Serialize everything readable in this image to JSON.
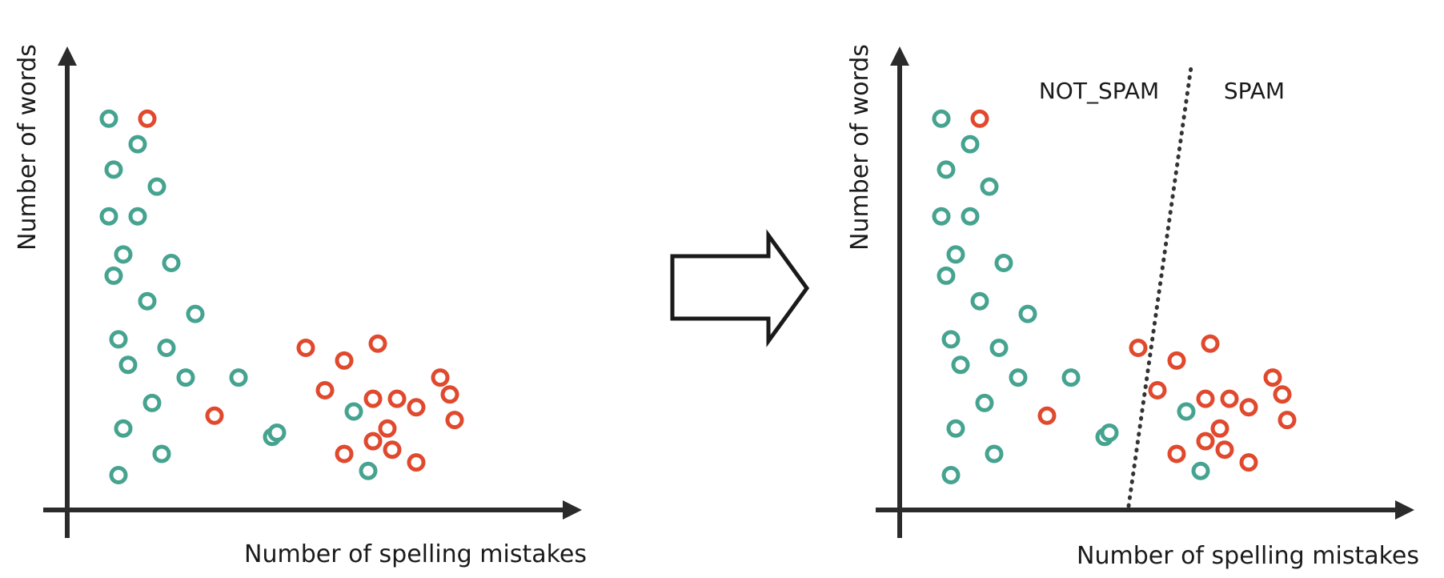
{
  "colors": {
    "not_spam": "#45a390",
    "spam": "#e0492d",
    "axis": "#2b2b2b",
    "text": "#1a1a1a",
    "arrow_stroke": "#1a1a1a",
    "boundary": "#333333"
  },
  "left_plot": {
    "x_axis_label": "Number of spelling mistakes",
    "y_axis_label": "Number of words"
  },
  "right_plot": {
    "x_axis_label": "Number of spelling mistakes",
    "y_axis_label": "Number of words",
    "region_left_label": "NOT_SPAM",
    "region_right_label": "SPAM"
  },
  "transition_icon": "right-arrow-icon",
  "chart_data": {
    "type": "scatter",
    "xlim": [
      0,
      100
    ],
    "ylim": [
      0,
      100
    ],
    "grid": false,
    "series": [
      {
        "class": "not_spam",
        "color": "#45a390",
        "points": [
          [
            6,
            89
          ],
          [
            12,
            83
          ],
          [
            7,
            77
          ],
          [
            16,
            73
          ],
          [
            6,
            66
          ],
          [
            12,
            66
          ],
          [
            9,
            57
          ],
          [
            19,
            55
          ],
          [
            7,
            52
          ],
          [
            14,
            46
          ],
          [
            24,
            43
          ],
          [
            8,
            37
          ],
          [
            18,
            35
          ],
          [
            10,
            31
          ],
          [
            22,
            28
          ],
          [
            33,
            28
          ],
          [
            15,
            22
          ],
          [
            57,
            20
          ],
          [
            9,
            16
          ],
          [
            40,
            14
          ],
          [
            41,
            15
          ],
          [
            17,
            10
          ],
          [
            8,
            5
          ],
          [
            60,
            6
          ]
        ]
      },
      {
        "class": "spam",
        "color": "#e0492d",
        "points": [
          [
            14,
            89
          ],
          [
            28,
            19
          ],
          [
            47,
            35
          ],
          [
            55,
            32
          ],
          [
            62,
            36
          ],
          [
            75,
            28
          ],
          [
            51,
            25
          ],
          [
            61,
            23
          ],
          [
            66,
            23
          ],
          [
            70,
            21
          ],
          [
            64,
            16
          ],
          [
            78,
            18
          ],
          [
            61,
            13
          ],
          [
            65,
            11
          ],
          [
            55,
            10
          ],
          [
            70,
            8
          ],
          [
            77,
            24
          ]
        ]
      }
    ],
    "boundary": {
      "style": "dotted",
      "from": [
        45,
        0
      ],
      "to": [
        58,
        100
      ]
    }
  }
}
